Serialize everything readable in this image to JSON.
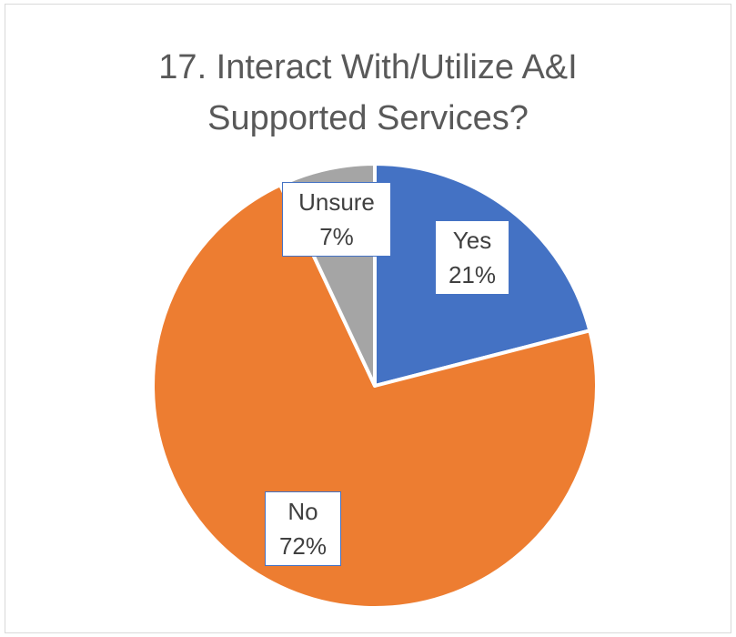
{
  "chart_data": {
    "type": "pie",
    "title_lines": [
      "17. Interact With/Utilize A&I",
      "Supported Services?"
    ],
    "slices": [
      {
        "category": "Yes",
        "value": 21,
        "label": "21%",
        "color": "#4472c4"
      },
      {
        "category": "No",
        "value": 72,
        "label": "72%",
        "color": "#ed7d31"
      },
      {
        "category": "Unsure",
        "value": 7,
        "label": "7%",
        "color": "#a5a5a5"
      }
    ],
    "start_angle_deg": 0,
    "direction": "clockwise",
    "legend": "none"
  }
}
